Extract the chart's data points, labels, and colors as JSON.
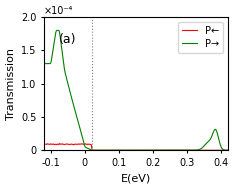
{
  "title": "(a)",
  "xlabel": "E(eV)",
  "ylabel": "Transmission",
  "xlim": [
    -0.12,
    0.42
  ],
  "ylim": [
    0,
    0.0002
  ],
  "ytick_labels": [
    "0",
    "0.5",
    "1.0",
    "1.5",
    "2.0"
  ],
  "ytick_values": [
    0,
    5e-05,
    0.0001,
    0.00015,
    0.0002
  ],
  "xtick_values": [
    -0.1,
    0.0,
    0.1,
    0.2,
    0.3,
    0.4
  ],
  "xtick_labels": [
    "-0.1",
    "0",
    "0.1",
    "0.2",
    "0.3",
    "0.4"
  ],
  "vline_x": 0.02,
  "legend_labels": [
    "P←",
    "P→"
  ],
  "line_colors": [
    "red",
    "green"
  ],
  "background_color": "white",
  "label_fontsize": 8,
  "tick_fontsize": 7,
  "title_fontsize": 9,
  "offset_text": "×10⁻⁴"
}
